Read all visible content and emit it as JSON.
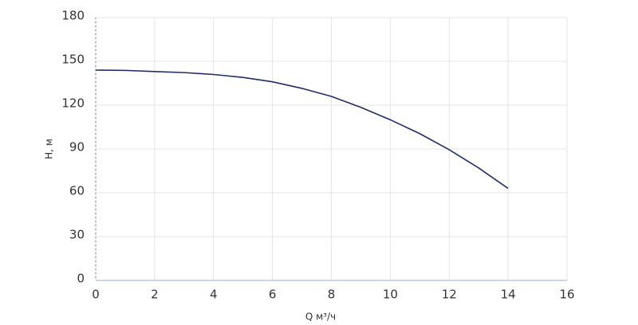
{
  "chart_data": {
    "type": "line",
    "xlabel": "Q м³/ч",
    "ylabel": "H, м",
    "x": [
      0,
      1,
      2,
      3,
      4,
      5,
      6,
      7,
      8,
      9,
      10,
      11,
      12,
      13,
      14
    ],
    "series": [
      {
        "name": "H",
        "color": "#1f2d6b",
        "values": [
          144,
          143.8,
          143,
          142.3,
          141,
          139,
          136,
          131.5,
          126,
          118.5,
          110,
          100.5,
          89.5,
          77,
          63
        ]
      }
    ],
    "xlim": [
      0,
      16
    ],
    "xticks": [
      0,
      2,
      4,
      6,
      8,
      10,
      12,
      14,
      16
    ],
    "ylim": [
      0,
      180
    ],
    "yticks": [
      0,
      30,
      60,
      90,
      120,
      150,
      180
    ],
    "grid": true
  }
}
